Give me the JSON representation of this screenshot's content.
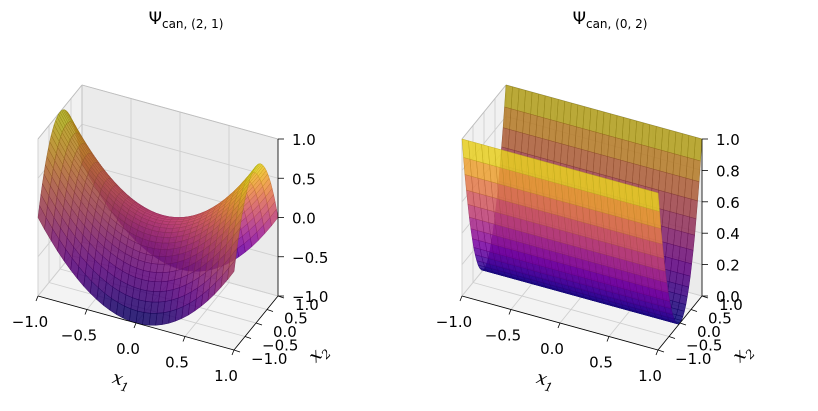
{
  "chart_data": [
    {
      "type": "surface3d",
      "title_main": "Ψ",
      "title_sub": "can, (2, 1)",
      "xlabel": "x",
      "xlabel_sub": "1",
      "ylabel": "x",
      "ylabel_sub": "2",
      "xlim": [
        -1.0,
        1.0
      ],
      "ylim": [
        -1.0,
        1.0
      ],
      "zlim": [
        -1.0,
        1.0
      ],
      "x_ticks": [
        "−1.0",
        "−0.5",
        "0.0",
        "0.5",
        "1.0"
      ],
      "y_ticks": [
        "−1.0",
        "−0.5",
        "0.0",
        "0.5",
        "1.0"
      ],
      "z_ticks": [
        "−1.0",
        "−0.5",
        "0.0",
        "0.5",
        "1.0"
      ],
      "surface": "z = x1^2 - x2^2 (saddle), sampled on grid over [-1,1]x[-1,1]",
      "colormap": "plasma"
    },
    {
      "type": "surface3d",
      "title_main": "Ψ",
      "title_sub": "can, (0, 2)",
      "xlabel": "x",
      "xlabel_sub": "1",
      "ylabel": "x",
      "ylabel_sub": "2",
      "xlim": [
        -1.0,
        1.0
      ],
      "ylim": [
        -1.0,
        1.0
      ],
      "zlim": [
        0.0,
        1.0
      ],
      "x_ticks": [
        "−1.0",
        "−0.5",
        "0.0",
        "0.5",
        "1.0"
      ],
      "y_ticks": [
        "−1.0",
        "−0.5",
        "0.0",
        "0.5",
        "1.0"
      ],
      "z_ticks": [
        "0.0",
        "0.2",
        "0.4",
        "0.6",
        "0.8",
        "1.0"
      ],
      "surface": "z = x2^2 (parabolic trough), sampled on grid over [-1,1]x[-1,1]",
      "colormap": "plasma"
    }
  ]
}
